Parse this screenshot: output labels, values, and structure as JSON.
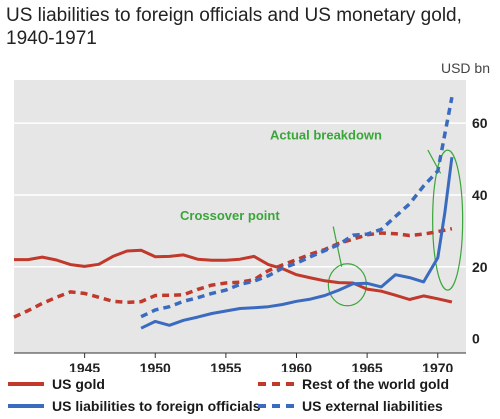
{
  "title": "US liabilities to foreign officials and US monetary gold, 1940-1971",
  "unit_label": "USD bn",
  "chart_data": {
    "type": "line",
    "xlim": [
      1940,
      1972
    ],
    "ylim": [
      -4,
      72
    ],
    "x_ticks": [
      1945,
      1950,
      1955,
      1960,
      1965,
      1970
    ],
    "y_ticks": [
      0,
      20,
      40,
      60
    ],
    "y_gridlines": [
      20,
      40,
      60
    ],
    "grid": "horizontal",
    "legend_position": "bottom",
    "series": [
      {
        "name": "US gold",
        "color": "#c0392b",
        "style": "solid",
        "x": [
          1940,
          1941,
          1942,
          1943,
          1944,
          1945,
          1946,
          1947,
          1948,
          1949,
          1950,
          1951,
          1952,
          1953,
          1954,
          1955,
          1956,
          1957,
          1958,
          1959,
          1960,
          1961,
          1962,
          1963,
          1964,
          1965,
          1966,
          1967,
          1968,
          1969,
          1970,
          1971
        ],
        "y": [
          22,
          22,
          22.7,
          21.9,
          20.6,
          20.1,
          20.7,
          22.9,
          24.4,
          24.6,
          22.8,
          22.9,
          23.3,
          22.1,
          21.8,
          21.8,
          22.1,
          22.9,
          20.6,
          19.5,
          17.8,
          16.9,
          16.1,
          15.6,
          15.5,
          13.8,
          13.2,
          12.1,
          10.9,
          11.9,
          11.1,
          10.2
        ]
      },
      {
        "name": "Rest of the world gold",
        "color": "#c0392b",
        "style": "dashed",
        "x": [
          1940,
          1941,
          1942,
          1943,
          1944,
          1945,
          1946,
          1947,
          1948,
          1949,
          1950,
          1951,
          1952,
          1953,
          1954,
          1955,
          1956,
          1957,
          1958,
          1959,
          1960,
          1961,
          1962,
          1963,
          1964,
          1965,
          1966,
          1967,
          1968,
          1969,
          1970,
          1971
        ],
        "y": [
          6,
          7.8,
          9.8,
          11.5,
          13,
          12.6,
          11.5,
          10.4,
          10.1,
          10.3,
          12,
          12.1,
          12.2,
          13.7,
          14.9,
          15.5,
          15.7,
          16.4,
          18.9,
          20.5,
          22,
          23.5,
          24.8,
          26.5,
          27.7,
          28.9,
          29.4,
          29.2,
          28.7,
          29.1,
          29.8,
          30.6
        ]
      },
      {
        "name": "US liabilities to foreign officials",
        "color": "#3b6bbf",
        "style": "solid",
        "x": [
          1949,
          1950,
          1951,
          1952,
          1953,
          1954,
          1955,
          1956,
          1957,
          1958,
          1959,
          1960,
          1961,
          1962,
          1963,
          1964,
          1965,
          1966,
          1967,
          1968,
          1969,
          1970,
          1970.5,
          1971
        ],
        "y": [
          2.9,
          4.8,
          3.7,
          5.1,
          6,
          7,
          7.7,
          8.4,
          8.6,
          8.9,
          9.5,
          10.4,
          11,
          12,
          13.5,
          15.3,
          15.4,
          14.4,
          17.8,
          17,
          15.8,
          22.5,
          35,
          50.5
        ]
      },
      {
        "name": "US external liabilities",
        "color": "#3b6bbf",
        "style": "dashed",
        "x": [
          1949,
          1950,
          1951,
          1952,
          1953,
          1954,
          1955,
          1956,
          1957,
          1958,
          1959,
          1960,
          1961,
          1962,
          1963,
          1964,
          1965,
          1966,
          1967,
          1968,
          1969,
          1970,
          1971
        ],
        "y": [
          6.1,
          8,
          8.9,
          10.4,
          11.4,
          12.6,
          13.5,
          15.1,
          16,
          17.5,
          19.6,
          21,
          22.8,
          24.5,
          26.2,
          28.8,
          29.1,
          30.4,
          34,
          37.5,
          42.5,
          46.7,
          67.2
        ]
      }
    ],
    "annotations": [
      {
        "text": "Actual breakdown",
        "color": "#3aa63a"
      },
      {
        "text": "Crossover point",
        "color": "#3aa63a"
      }
    ]
  }
}
